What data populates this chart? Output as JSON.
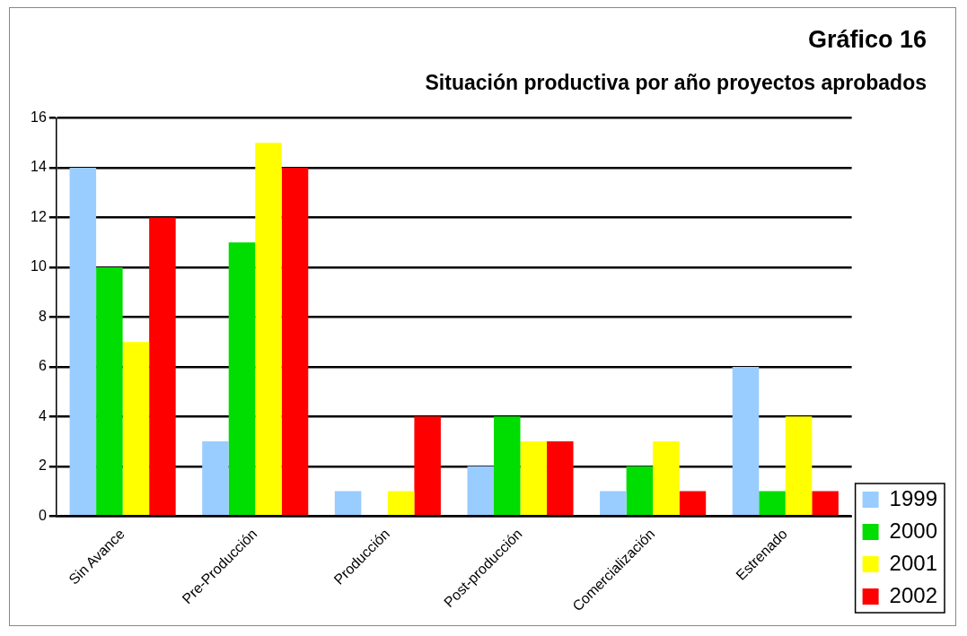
{
  "chart_data": {
    "type": "bar",
    "title": "Gráfico 16",
    "subtitle": "Situación productiva por año proyectos aprobados",
    "categories": [
      "Sin Avance",
      "Pre-Producción",
      "Producción",
      "Post-producción",
      "Comercialización",
      "Estrenado"
    ],
    "series": [
      {
        "name": "1999",
        "color": "#99ccff",
        "values": [
          14,
          3,
          1,
          2,
          1,
          6
        ]
      },
      {
        "name": "2000",
        "color": "#00dd00",
        "values": [
          10,
          11,
          0,
          4,
          2,
          1
        ]
      },
      {
        "name": "2001",
        "color": "#ffff00",
        "values": [
          7,
          15,
          1,
          3,
          3,
          4
        ]
      },
      {
        "name": "2002",
        "color": "#ff0000",
        "values": [
          12,
          14,
          4,
          3,
          1,
          1
        ]
      }
    ],
    "ylim": [
      0,
      16
    ],
    "yticks": [
      0,
      2,
      4,
      6,
      8,
      10,
      12,
      14,
      16
    ],
    "grid": "y",
    "legend": "bottom right"
  }
}
